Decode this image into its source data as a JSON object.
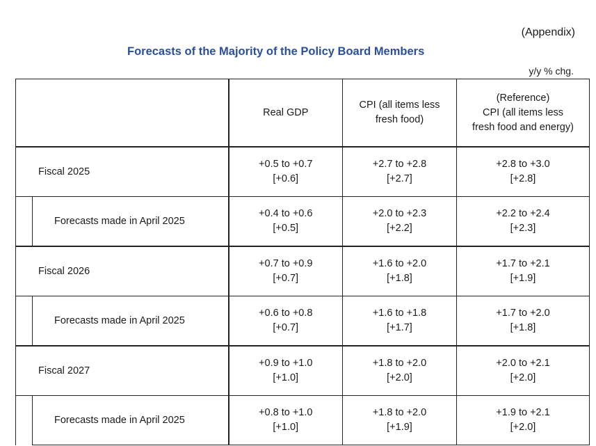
{
  "appendix": "(Appendix)",
  "title": "Forecasts of the Majority of the Policy Board Members",
  "unit": "y/y % chg.",
  "columns": [
    [
      "Real GDP"
    ],
    [
      "CPI (all items less",
      "fresh food)"
    ],
    [
      "(Reference)",
      "CPI (all items less",
      "fresh food and energy)"
    ]
  ],
  "rows": [
    {
      "label": "Fiscal 2025",
      "cells": [
        [
          "+0.5 to +0.7",
          "[+0.6]"
        ],
        [
          "+2.7 to +2.8",
          "[+2.7]"
        ],
        [
          "+2.8 to +3.0",
          "[+2.8]"
        ]
      ]
    },
    {
      "label": "Forecasts made in April 2025",
      "cells": [
        [
          "+0.4 to +0.6",
          "[+0.5]"
        ],
        [
          "+2.0 to +2.3",
          "[+2.2]"
        ],
        [
          "+2.2 to +2.4",
          "[+2.3]"
        ]
      ]
    },
    {
      "label": "Fiscal 2026",
      "cells": [
        [
          "+0.7 to +0.9",
          "[+0.7]"
        ],
        [
          "+1.6 to +2.0",
          "[+1.8]"
        ],
        [
          "+1.7 to +2.1",
          "[+1.9]"
        ]
      ]
    },
    {
      "label": "Forecasts made in April 2025",
      "cells": [
        [
          "+0.6 to +0.8",
          "[+0.7]"
        ],
        [
          "+1.6 to +1.8",
          "[+1.7]"
        ],
        [
          "+1.7 to +2.0",
          "[+1.8]"
        ]
      ]
    },
    {
      "label": "Fiscal 2027",
      "cells": [
        [
          "+0.9 to +1.0",
          "[+1.0]"
        ],
        [
          "+1.8 to +2.0",
          "[+2.0]"
        ],
        [
          "+2.0 to +2.1",
          "[+2.0]"
        ]
      ]
    },
    {
      "label": "Forecasts made in April 2025",
      "cells": [
        [
          "+0.8 to +1.0",
          "[+1.0]"
        ],
        [
          "+1.8 to +2.0",
          "[+1.9]"
        ],
        [
          "+1.9 to +2.1",
          "[+2.0]"
        ]
      ]
    }
  ]
}
